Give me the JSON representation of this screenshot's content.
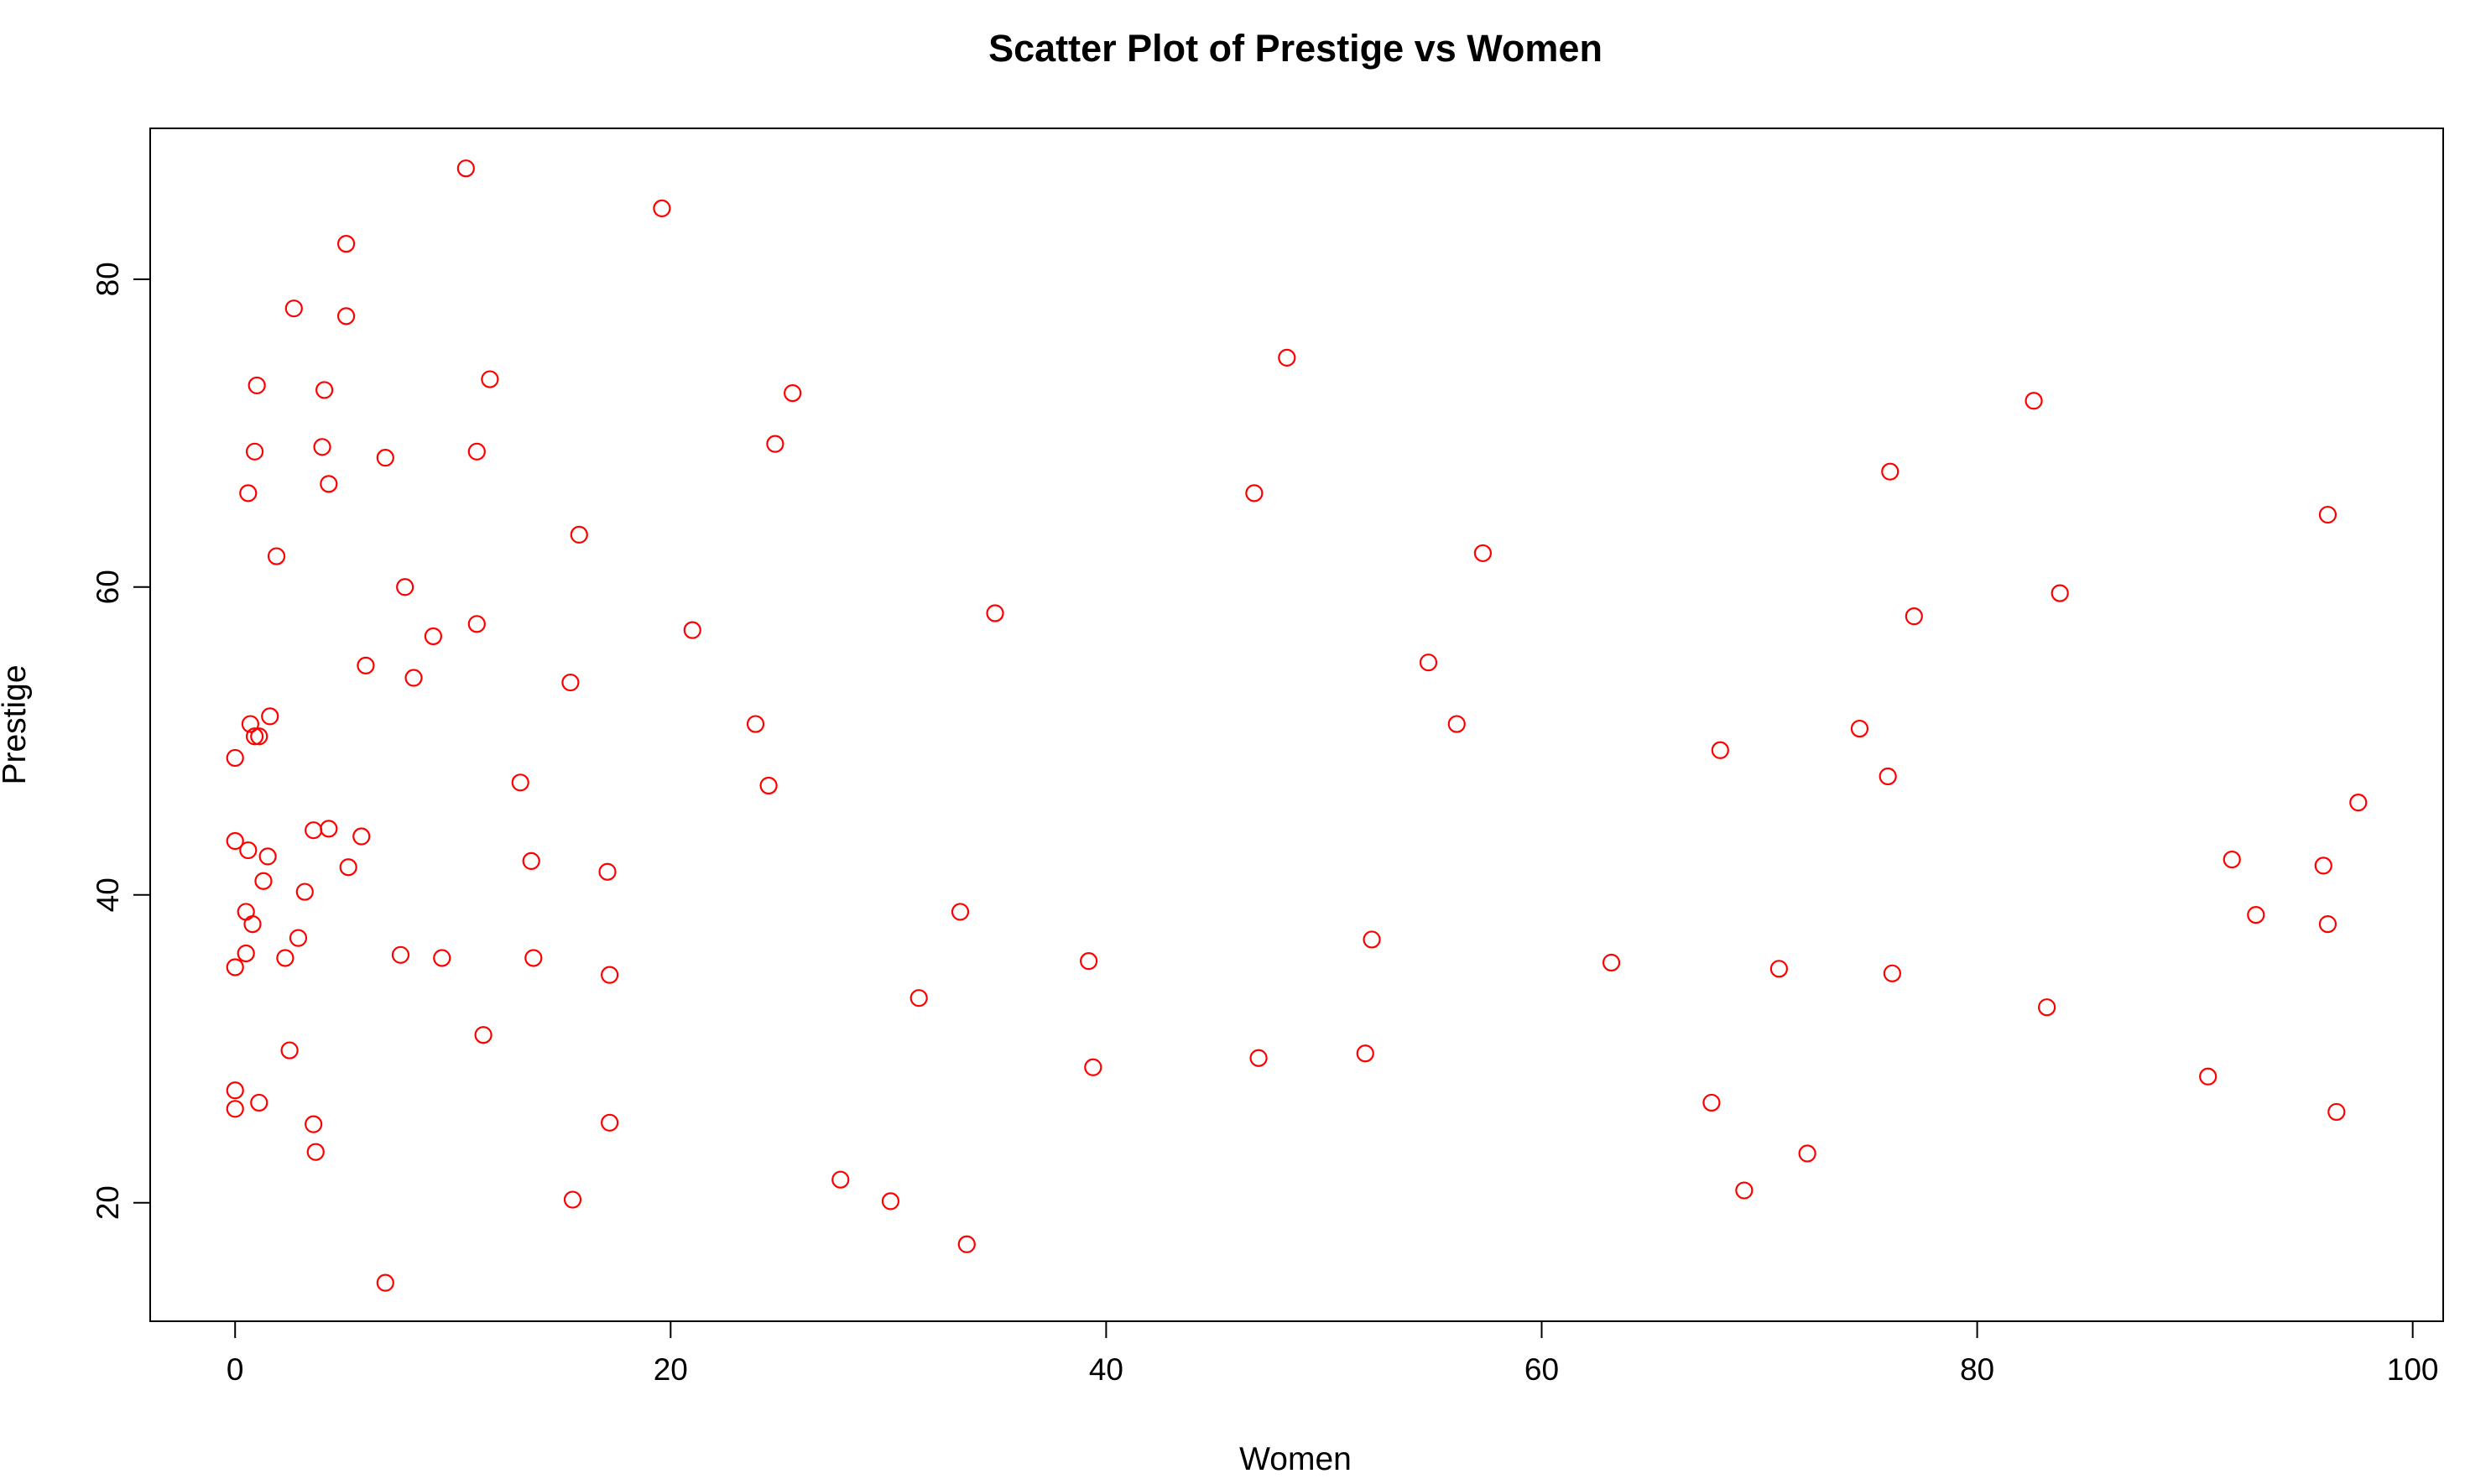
{
  "chart_data": {
    "type": "scatter",
    "title": "Scatter Plot of Prestige vs Women",
    "xlabel": "Women",
    "ylabel": "Prestige",
    "xlim": [
      -3.9,
      101.4
    ],
    "ylim": [
      12.3,
      89.8
    ],
    "xticks": [
      0,
      20,
      40,
      60,
      80,
      100
    ],
    "yticks": [
      20,
      40,
      60,
      80
    ],
    "xtick_labels": [
      "0",
      "20",
      "40",
      "60",
      "80",
      "100"
    ],
    "ytick_labels": [
      "20",
      "40",
      "60",
      "80"
    ],
    "grid": false,
    "legend": "none",
    "marker": "open-circle",
    "color": "#ff0000",
    "x": [
      10.6,
      19.6,
      5.1,
      2.7,
      5.1,
      1.0,
      4.1,
      11.7,
      25.6,
      48.3,
      82.6,
      0.9,
      24.8,
      4.0,
      11.1,
      6.9,
      0.6,
      4.3,
      46.8,
      76.0,
      96.1,
      15.8,
      1.9,
      57.3,
      7.8,
      83.8,
      34.9,
      77.1,
      11.1,
      21.0,
      9.1,
      6.0,
      54.8,
      8.2,
      15.4,
      1.6,
      0.7,
      23.9,
      56.1,
      0.9,
      1.1,
      74.6,
      68.2,
      0.0,
      75.9,
      13.1,
      24.5,
      97.5,
      4.3,
      3.6,
      0.0,
      5.8,
      0.6,
      1.5,
      13.6,
      91.7,
      95.9,
      1.3,
      17.1,
      5.2,
      3.2,
      0.5,
      92.8,
      33.3,
      0.8,
      96.1,
      52.2,
      2.9,
      0.5,
      7.6,
      9.5,
      13.7,
      2.3,
      39.2,
      63.2,
      0.0,
      70.9,
      76.1,
      17.2,
      31.4,
      83.2,
      11.4,
      2.5,
      47.0,
      51.9,
      39.4,
      90.6,
      0.0,
      1.1,
      67.8,
      0.0,
      96.5,
      3.6,
      17.2,
      3.7,
      72.2,
      27.8,
      69.3,
      15.5,
      30.1,
      33.6,
      6.9
    ],
    "y": [
      87.2,
      84.6,
      82.3,
      78.1,
      77.6,
      73.1,
      72.8,
      73.5,
      72.6,
      74.9,
      72.1,
      68.8,
      69.3,
      69.1,
      68.8,
      68.4,
      66.1,
      66.7,
      66.1,
      67.5,
      64.7,
      63.4,
      62.0,
      62.2,
      60.0,
      59.6,
      58.3,
      58.1,
      57.6,
      57.2,
      56.8,
      54.9,
      55.1,
      54.1,
      53.8,
      51.6,
      51.1,
      51.1,
      51.1,
      50.3,
      50.3,
      50.8,
      49.4,
      48.9,
      47.7,
      47.3,
      47.1,
      46.0,
      44.3,
      44.2,
      43.5,
      43.8,
      42.9,
      42.5,
      42.2,
      42.3,
      41.9,
      40.9,
      41.5,
      41.8,
      40.2,
      38.9,
      38.7,
      38.9,
      38.1,
      38.1,
      37.1,
      37.2,
      36.2,
      36.1,
      35.9,
      35.9,
      35.9,
      35.7,
      35.6,
      35.3,
      35.2,
      34.9,
      34.8,
      33.3,
      32.7,
      30.9,
      29.9,
      29.4,
      29.7,
      28.8,
      28.2,
      27.3,
      26.5,
      26.5,
      26.1,
      25.9,
      25.1,
      25.2,
      23.3,
      23.2,
      21.5,
      20.8,
      20.2,
      20.1,
      17.3,
      14.8
    ]
  }
}
